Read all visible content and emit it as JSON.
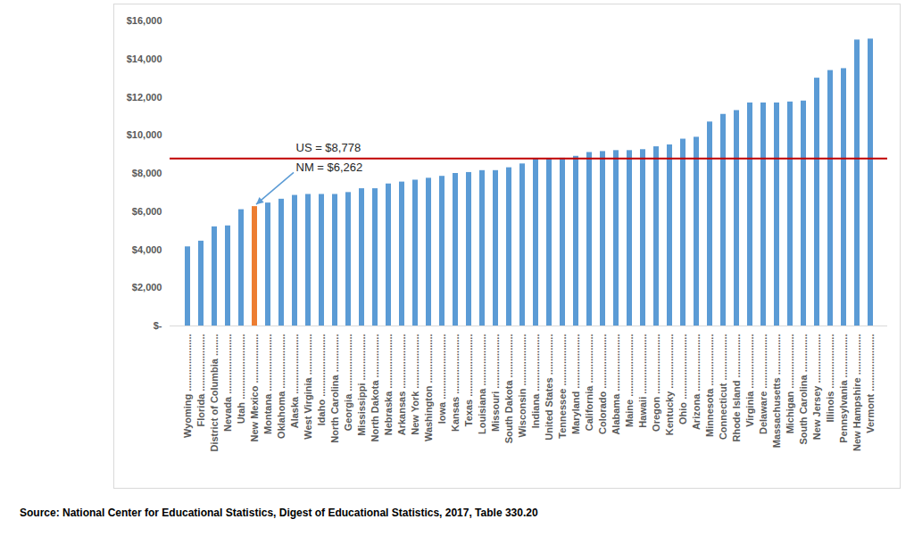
{
  "chart_data": {
    "type": "bar",
    "categories": [
      "Wyoming .....................",
      "Florida .....................",
      "District of Columbia ........",
      "Nevada ......................",
      "Utah ........................",
      "New Mexico ..................",
      "Montana .....................",
      "Oklahoma ....................",
      "Alaska ......................",
      "West Virginia ...............",
      "Idaho .......................",
      "North Carolina ..............",
      "Georgia .....................",
      "Mississippi .................",
      "North Dakota ................",
      "Nebraska ....................",
      "Arkansas ....................",
      "New York ....................",
      "Washington ..................",
      "Iowa ........................",
      "Kansas ......................",
      "Texas .......................",
      "Louisiana ...................",
      "Missouri ....................",
      "South Dakota ................",
      "Wisconsin ...................",
      "Indiana .....................",
      "United States ...............",
      "Tennessee ...................",
      "Maryland ....................",
      "California ..................",
      "Colorado ....................",
      "Alabama .....................",
      "Maine .......................",
      "Hawaii ......................",
      "Oregon ......................",
      "Kentucky ....................",
      "Ohio ........................",
      "Arizona .....................",
      "Minnesota ...................",
      "Connecticut .................",
      "Rhode Island ................",
      "Virginia ....................",
      "Delaware ....................",
      "Massachusetts ...............",
      "Michigan ....................",
      "South Carolina ..............",
      "New Jersey ..................",
      "Illinois ....................",
      "Pennsylvania ................",
      "New Hampshire ...............",
      "Vermont ....................."
    ],
    "values": [
      4150,
      4450,
      5200,
      5250,
      6100,
      6262,
      6450,
      6650,
      6850,
      6900,
      6900,
      6900,
      7000,
      7200,
      7200,
      7450,
      7550,
      7650,
      7750,
      7850,
      8000,
      8050,
      8150,
      8150,
      8300,
      8500,
      8750,
      8778,
      8800,
      8900,
      9100,
      9150,
      9200,
      9200,
      9250,
      9400,
      9500,
      9800,
      9900,
      10700,
      11100,
      11300,
      11700,
      11700,
      11700,
      11750,
      11800,
      13000,
      13400,
      13500,
      15000,
      15050
    ],
    "colors": [
      "#5b9bd5",
      "#5b9bd5",
      "#5b9bd5",
      "#5b9bd5",
      "#5b9bd5",
      "#ed7d31",
      "#5b9bd5",
      "#5b9bd5",
      "#5b9bd5",
      "#5b9bd5",
      "#5b9bd5",
      "#5b9bd5",
      "#5b9bd5",
      "#5b9bd5",
      "#5b9bd5",
      "#5b9bd5",
      "#5b9bd5",
      "#5b9bd5",
      "#5b9bd5",
      "#5b9bd5",
      "#5b9bd5",
      "#5b9bd5",
      "#5b9bd5",
      "#5b9bd5",
      "#5b9bd5",
      "#5b9bd5",
      "#5b9bd5",
      "#5b9bd5",
      "#5b9bd5",
      "#5b9bd5",
      "#5b9bd5",
      "#5b9bd5",
      "#5b9bd5",
      "#5b9bd5",
      "#5b9bd5",
      "#5b9bd5",
      "#5b9bd5",
      "#5b9bd5",
      "#5b9bd5",
      "#5b9bd5",
      "#5b9bd5",
      "#5b9bd5",
      "#5b9bd5",
      "#5b9bd5",
      "#5b9bd5",
      "#5b9bd5",
      "#5b9bd5",
      "#5b9bd5",
      "#5b9bd5",
      "#5b9bd5",
      "#5b9bd5",
      "#5b9bd5"
    ],
    "ylim": [
      0,
      16000
    ],
    "yticks": [
      {
        "value": 0,
        "label": "$-"
      },
      {
        "value": 2000,
        "label": "$2,000"
      },
      {
        "value": 4000,
        "label": "$4,000"
      },
      {
        "value": 6000,
        "label": "$6,000"
      },
      {
        "value": 8000,
        "label": "$8,000"
      },
      {
        "value": 10000,
        "label": "$10,000"
      },
      {
        "value": 12000,
        "label": "$12,000"
      },
      {
        "value": 14000,
        "label": "$14,000"
      },
      {
        "value": 16000,
        "label": "$16,000"
      }
    ],
    "grid": false,
    "reference_line": {
      "value": 8778,
      "color": "#c00000"
    },
    "annotations": [
      {
        "text": "US = $8,778",
        "value": 8778
      },
      {
        "text": "NM = $6,262",
        "value": 6262,
        "category": "New Mexico .................."
      }
    ],
    "caption": "Source: National Center for Educational Statistics, Digest of Educational Statistics, 2017, Table 330.20"
  }
}
